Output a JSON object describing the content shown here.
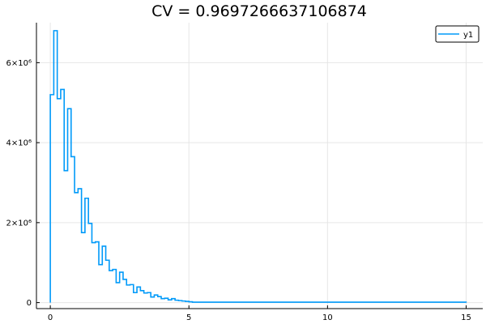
{
  "chart_data": {
    "type": "line",
    "step": true,
    "title": "CV = 0.9697266637106874",
    "xlabel": "",
    "ylabel": "",
    "xlim": [
      -0.5,
      15.6
    ],
    "ylim": [
      -150000,
      7000000
    ],
    "grid": true,
    "legend_position": "top-right",
    "x_ticks": [
      {
        "value": 0,
        "label": "0"
      },
      {
        "value": 5,
        "label": "5"
      },
      {
        "value": 10,
        "label": "10"
      },
      {
        "value": 15,
        "label": "15"
      }
    ],
    "y_ticks": [
      {
        "value": 0,
        "label": "0"
      },
      {
        "value": 2000000,
        "label": "2×10⁶"
      },
      {
        "value": 4000000,
        "label": "4×10⁶"
      },
      {
        "value": 6000000,
        "label": "6×10⁶"
      }
    ],
    "series": [
      {
        "name": "y1",
        "color": "#009af9",
        "bin_edges": [
          0,
          0.125,
          0.25,
          0.375,
          0.5,
          0.625,
          0.75,
          0.875,
          1,
          1.125,
          1.25,
          1.375,
          1.5,
          1.625,
          1.75,
          1.875,
          2,
          2.125,
          2.25,
          2.375,
          2.5,
          2.625,
          2.75,
          2.875,
          3,
          3.125,
          3.25,
          3.375,
          3.5,
          3.625,
          3.75,
          3.875,
          4,
          4.125,
          4.25,
          4.375,
          4.5,
          4.625,
          4.75,
          4.875,
          5,
          5.125,
          15
        ],
        "values": [
          5200000,
          6800000,
          5100000,
          5330000,
          3300000,
          4850000,
          3650000,
          2750000,
          2850000,
          1750000,
          2610000,
          1980000,
          1500000,
          1520000,
          950000,
          1410000,
          1060000,
          800000,
          830000,
          500000,
          760000,
          580000,
          440000,
          450000,
          250000,
          390000,
          300000,
          240000,
          250000,
          140000,
          190000,
          150000,
          100000,
          110000,
          70000,
          100000,
          60000,
          50000,
          40000,
          30000,
          20000,
          10000
        ]
      }
    ]
  }
}
